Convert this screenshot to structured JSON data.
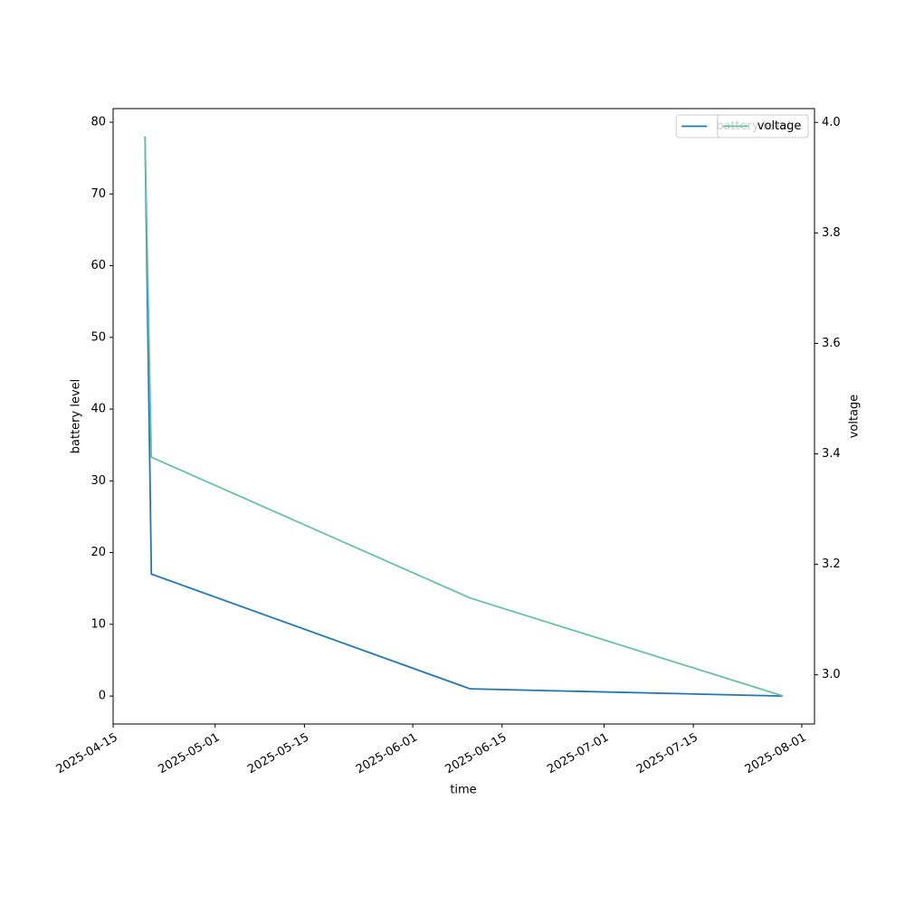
{
  "chart_data": {
    "type": "line",
    "x": [
      "2025-04-20",
      "2025-04-21",
      "2025-06-10",
      "2025-07-29"
    ],
    "xlabel": "time",
    "ylabel": "battery level",
    "y2label": "voltage",
    "xlim": [
      "2025-04-15",
      "2025-08-03"
    ],
    "xticks": [
      "2025-04-15",
      "2025-05-01",
      "2025-05-15",
      "2025-06-01",
      "2025-06-15",
      "2025-07-01",
      "2025-07-15",
      "2025-08-01"
    ],
    "ylim": [
      -3.9,
      81.9
    ],
    "yticks": [
      0,
      10,
      20,
      30,
      40,
      50,
      60,
      70,
      80
    ],
    "y2lim": [
      2.911,
      4.025
    ],
    "y2ticks": [
      {
        "value": 3,
        "label": "3.0"
      },
      3.2,
      3.4,
      3.6,
      3.8,
      {
        "value": 4,
        "label": "4.0"
      }
    ],
    "legend": "upper right",
    "series": [
      {
        "name": "battery level",
        "color": "#1f77b4",
        "values": [
          78,
          17,
          1,
          0
        ]
      },
      {
        "name": "voltage",
        "color": "#66c2a5",
        "axis": "y2",
        "values": [
          3.974,
          3.394,
          3.139,
          2.962
        ]
      }
    ]
  }
}
